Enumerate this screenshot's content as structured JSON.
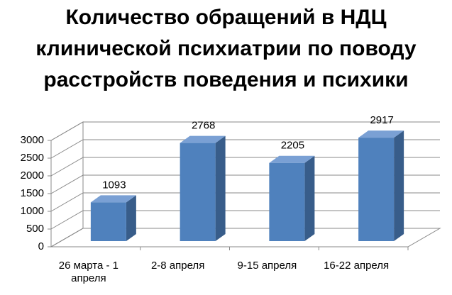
{
  "chart_data": {
    "type": "bar3d",
    "title": [
      "Количество обращений в НДЦ",
      "клинической психиатрии по поводу",
      "расстройств поведения и психики"
    ],
    "categories": [
      "26 марта - 1 апреля",
      "2-8 апреля",
      "9-15 апреля",
      "16-22 апреля"
    ],
    "values": [
      1093,
      2768,
      2205,
      2917
    ],
    "color": "#4f81bd",
    "ylim": [
      0,
      3000
    ],
    "yticks": [
      0,
      500,
      1000,
      1500,
      2000,
      2500,
      3000
    ],
    "grid": true
  }
}
